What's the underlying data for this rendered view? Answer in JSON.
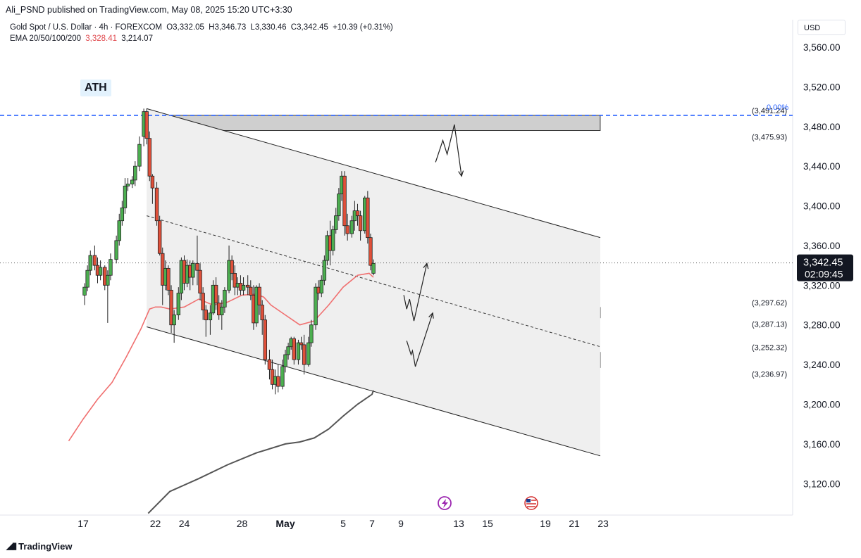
{
  "header": {
    "published": "Ali_PSND published on TradingView.com, May 08, 2025 15:20 UTC+3:30",
    "symbol": "Gold Spot / U.S. Dollar · 4h · FOREXCOM",
    "open": "O3,332.05",
    "high": "H3,346.73",
    "low": "L3,330.46",
    "close": "C3,342.45",
    "change": "+10.39 (+0.31%)",
    "ema_label": "EMA 20/50/100/200",
    "ema_fast": "3,328.41",
    "ema_slow": "3,214.07"
  },
  "currency": "USD",
  "ath_label": "ATH",
  "footer": {
    "brand": "TradingView"
  },
  "colors": {
    "up": "#4caf50",
    "down": "#e0503a",
    "ema_fast": "#f07070",
    "ema_slow": "#555555",
    "ath_line": "#2962ff",
    "zone": "#cfcfcf"
  },
  "chart_data": {
    "type": "candlestick",
    "ylim": [
      3090,
      3590
    ],
    "y_ticks": [
      "3,120.00",
      "3,160.00",
      "3,200.00",
      "3,240.00",
      "3,280.00",
      "3,320.00",
      "3,360.00",
      "3,400.00",
      "3,440.00",
      "3,480.00",
      "3,520.00",
      "3,560.00"
    ],
    "y_tick_values": [
      3120,
      3160,
      3200,
      3240,
      3280,
      3320,
      3360,
      3400,
      3440,
      3480,
      3520,
      3560
    ],
    "x_ticks": [
      "17",
      "22",
      "24",
      "28",
      "May",
      "5",
      "7",
      "9",
      "13",
      "15",
      "19",
      "21",
      "23"
    ],
    "x_tick_days": [
      -14,
      -9,
      -7,
      -3,
      0,
      4,
      6,
      8,
      12,
      14,
      18,
      20,
      22
    ],
    "last_price": "3,342.45",
    "countdown": "02:09:45",
    "fib_label": "0.00%",
    "levels": [
      {
        "label": "(3,491.24)",
        "value": 3491.24
      },
      {
        "label": "(3,475.93)",
        "value": 3475.93
      },
      {
        "label": "(3,297.62)",
        "value": 3297.62
      },
      {
        "label": "(3,287.13)",
        "value": 3287.13
      },
      {
        "label": "(3,252.32)",
        "value": 3252.32
      },
      {
        "label": "(3,236.97)",
        "value": 3236.97
      }
    ],
    "ohlc": [
      [
        -13.9,
        3310,
        3322,
        3300,
        3318
      ],
      [
        -13.7,
        3318,
        3340,
        3314,
        3335
      ],
      [
        -13.5,
        3335,
        3355,
        3330,
        3350
      ],
      [
        -13.2,
        3350,
        3360,
        3335,
        3340
      ],
      [
        -13.0,
        3340,
        3348,
        3322,
        3330
      ],
      [
        -12.8,
        3330,
        3345,
        3325,
        3338
      ],
      [
        -12.5,
        3338,
        3340,
        3315,
        3320
      ],
      [
        -12.3,
        3320,
        3335,
        3282,
        3330
      ],
      [
        -12.1,
        3330,
        3352,
        3325,
        3346
      ],
      [
        -11.7,
        3346,
        3370,
        3342,
        3365
      ],
      [
        -11.5,
        3365,
        3392,
        3360,
        3385
      ],
      [
        -11.3,
        3385,
        3405,
        3380,
        3398
      ],
      [
        -11.1,
        3398,
        3428,
        3392,
        3420
      ],
      [
        -10.9,
        3420,
        3428,
        3415,
        3422
      ],
      [
        -10.6,
        3422,
        3430,
        3418,
        3426
      ],
      [
        -10.4,
        3426,
        3445,
        3420,
        3440
      ],
      [
        -10.1,
        3440,
        3470,
        3435,
        3462
      ],
      [
        -9.8,
        3470,
        3498,
        3460,
        3495
      ],
      [
        -9.6,
        3495,
        3498,
        3462,
        3468
      ],
      [
        -9.4,
        3468,
        3475,
        3425,
        3430
      ],
      [
        -9.2,
        3430,
        3432,
        3402,
        3418
      ],
      [
        -8.9,
        3418,
        3424,
        3380,
        3385
      ],
      [
        -8.7,
        3385,
        3390,
        3350,
        3352
      ],
      [
        -8.5,
        3352,
        3358,
        3300,
        3320
      ],
      [
        -8.3,
        3320,
        3345,
        3315,
        3337
      ],
      [
        -8.1,
        3337,
        3340,
        3310,
        3315
      ],
      [
        -7.9,
        3315,
        3320,
        3272,
        3280
      ],
      [
        -7.7,
        3280,
        3295,
        3262,
        3290
      ],
      [
        -7.4,
        3290,
        3318,
        3285,
        3312
      ],
      [
        -7.2,
        3312,
        3348,
        3305,
        3345
      ],
      [
        -7.0,
        3345,
        3350,
        3315,
        3322
      ],
      [
        -6.8,
        3322,
        3346,
        3318,
        3340
      ],
      [
        -6.6,
        3340,
        3345,
        3315,
        3328
      ],
      [
        -6.4,
        3328,
        3345,
        3320,
        3342
      ],
      [
        -6.1,
        3342,
        3370,
        3320,
        3335
      ],
      [
        -5.9,
        3335,
        3342,
        3305,
        3312
      ],
      [
        -5.7,
        3312,
        3318,
        3285,
        3295
      ],
      [
        -5.5,
        3295,
        3300,
        3268,
        3285
      ],
      [
        -5.2,
        3285,
        3300,
        3270,
        3292
      ],
      [
        -5.0,
        3292,
        3325,
        3290,
        3320
      ],
      [
        -4.8,
        3320,
        3328,
        3295,
        3302
      ],
      [
        -4.6,
        3302,
        3310,
        3285,
        3290
      ],
      [
        -4.4,
        3290,
        3305,
        3275,
        3298
      ],
      [
        -4.2,
        3298,
        3318,
        3292,
        3315
      ],
      [
        -3.9,
        3315,
        3360,
        3312,
        3345
      ],
      [
        -3.7,
        3345,
        3350,
        3325,
        3332
      ],
      [
        -3.5,
        3332,
        3340,
        3310,
        3318
      ],
      [
        -3.3,
        3318,
        3328,
        3310,
        3322
      ],
      [
        -3.1,
        3322,
        3330,
        3310,
        3315
      ],
      [
        -2.9,
        3315,
        3328,
        3310,
        3320
      ],
      [
        -2.6,
        3320,
        3330,
        3310,
        3318
      ],
      [
        -2.4,
        3318,
        3325,
        3305,
        3310
      ],
      [
        -2.2,
        3310,
        3320,
        3275,
        3282
      ],
      [
        -2.0,
        3282,
        3320,
        3278,
        3318
      ],
      [
        -1.8,
        3318,
        3322,
        3290,
        3300
      ],
      [
        -1.6,
        3300,
        3305,
        3270,
        3285
      ],
      [
        -1.4,
        3285,
        3290,
        3240,
        3245
      ],
      [
        -1.1,
        3245,
        3255,
        3225,
        3235
      ],
      [
        -0.9,
        3235,
        3245,
        3215,
        3220
      ],
      [
        -0.7,
        3220,
        3235,
        3210,
        3228
      ],
      [
        -0.5,
        3228,
        3240,
        3212,
        3218
      ],
      [
        -0.2,
        3218,
        3245,
        3215,
        3238
      ],
      [
        0.0,
        3238,
        3255,
        3232,
        3250
      ],
      [
        0.2,
        3250,
        3262,
        3245,
        3258
      ],
      [
        0.4,
        3258,
        3268,
        3255,
        3266
      ],
      [
        0.6,
        3266,
        3268,
        3240,
        3245
      ],
      [
        0.9,
        3245,
        3265,
        3240,
        3262
      ],
      [
        1.1,
        3262,
        3268,
        3255,
        3260
      ],
      [
        1.3,
        3260,
        3270,
        3230,
        3240
      ],
      [
        1.6,
        3240,
        3268,
        3238,
        3262
      ],
      [
        1.8,
        3262,
        3285,
        3258,
        3280
      ],
      [
        2.1,
        3280,
        3322,
        3275,
        3318
      ],
      [
        2.3,
        3318,
        3325,
        3305,
        3312
      ],
      [
        2.5,
        3312,
        3330,
        3308,
        3325
      ],
      [
        2.7,
        3325,
        3350,
        3320,
        3345
      ],
      [
        2.9,
        3345,
        3375,
        3340,
        3370
      ],
      [
        3.1,
        3370,
        3385,
        3340,
        3355
      ],
      [
        3.3,
        3355,
        3380,
        3350,
        3376
      ],
      [
        3.5,
        3376,
        3398,
        3372,
        3390
      ],
      [
        3.7,
        3390,
        3418,
        3385,
        3412
      ],
      [
        3.9,
        3412,
        3435,
        3405,
        3430
      ],
      [
        4.1,
        3430,
        3435,
        3370,
        3380
      ],
      [
        4.3,
        3380,
        3392,
        3365,
        3372
      ],
      [
        4.6,
        3372,
        3390,
        3368,
        3385
      ],
      [
        4.8,
        3385,
        3405,
        3375,
        3395
      ],
      [
        5.0,
        3395,
        3402,
        3380,
        3390
      ],
      [
        5.2,
        3390,
        3395,
        3365,
        3375
      ],
      [
        5.5,
        3375,
        3410,
        3372,
        3408
      ],
      [
        5.7,
        3408,
        3415,
        3362,
        3368
      ],
      [
        5.9,
        3368,
        3372,
        3335,
        3340
      ],
      [
        6.1,
        3332,
        3346,
        3330,
        3342
      ]
    ],
    "ema20": [
      [
        -15,
        3163
      ],
      [
        -14,
        3185
      ],
      [
        -13,
        3205
      ],
      [
        -12,
        3222
      ],
      [
        -11,
        3248
      ],
      [
        -10,
        3276
      ],
      [
        -9.4,
        3296
      ],
      [
        -9,
        3298
      ],
      [
        -8.6,
        3298
      ],
      [
        -8,
        3296
      ],
      [
        -7,
        3298
      ],
      [
        -6,
        3306
      ],
      [
        -5,
        3300
      ],
      [
        -4,
        3303
      ],
      [
        -3,
        3310
      ],
      [
        -2,
        3311
      ],
      [
        -1.5,
        3308
      ],
      [
        -1,
        3300
      ],
      [
        0,
        3290
      ],
      [
        1,
        3280
      ],
      [
        2,
        3284
      ],
      [
        3,
        3300
      ],
      [
        4,
        3318
      ],
      [
        5,
        3330
      ],
      [
        5.8,
        3332
      ],
      [
        6.1,
        3328
      ]
    ],
    "ema_slow_line": [
      [
        -9.5,
        3090
      ],
      [
        -8,
        3112
      ],
      [
        -6,
        3125
      ],
      [
        -4,
        3139
      ],
      [
        -2,
        3151
      ],
      [
        0,
        3160
      ],
      [
        1,
        3162
      ],
      [
        2,
        3166
      ],
      [
        3,
        3175
      ],
      [
        4,
        3188
      ],
      [
        5,
        3200
      ],
      [
        6,
        3210
      ],
      [
        6.1,
        3214
      ]
    ],
    "channel": {
      "upper": [
        [
          -9.6,
          3498
        ],
        [
          21.8,
          3368
        ]
      ],
      "lower": [
        [
          -9.6,
          3278
        ],
        [
          21.8,
          3148
        ]
      ],
      "mid": [
        [
          -9.6,
          3390
        ],
        [
          21.8,
          3258
        ]
      ]
    },
    "zones": [
      {
        "from": -9.6,
        "to": 21.8,
        "low": 3475.93,
        "high": 3491.24
      },
      {
        "from": 2.0,
        "to": 21.8,
        "low": 3287.13,
        "high": 3297.62
      },
      {
        "from": 1.3,
        "to": 21.8,
        "low": 3236.97,
        "high": 3252.32
      }
    ],
    "projections": [
      [
        [
          10.4,
          3444
        ],
        [
          10.9,
          3466
        ],
        [
          11.2,
          3452
        ],
        [
          11.7,
          3482
        ],
        [
          12.2,
          3430
        ]
      ],
      [
        [
          8.2,
          3310
        ],
        [
          8.4,
          3296
        ],
        [
          8.6,
          3306
        ],
        [
          8.9,
          3284
        ],
        [
          9.8,
          3342
        ]
      ],
      [
        [
          8.4,
          3264
        ],
        [
          8.7,
          3250
        ],
        [
          8.8,
          3254
        ],
        [
          9.0,
          3238
        ],
        [
          10.2,
          3292
        ]
      ]
    ]
  }
}
